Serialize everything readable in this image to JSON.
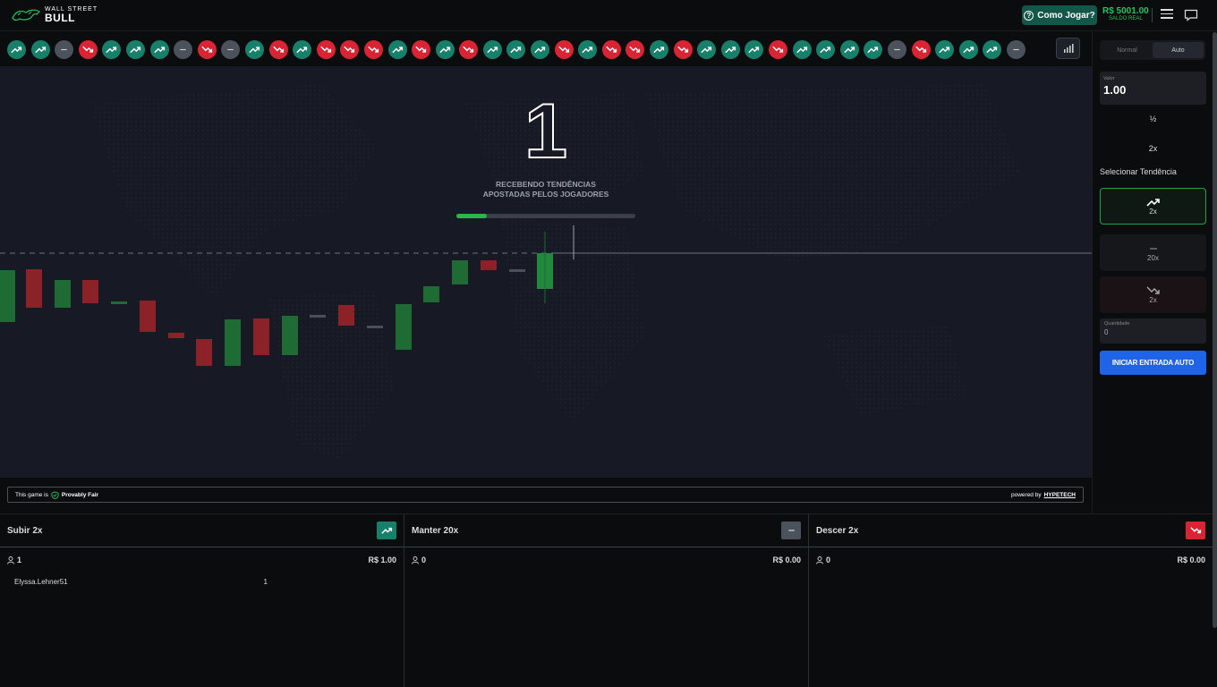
{
  "header": {
    "logo_line1": "WALL STREET",
    "logo_line2": "BULL",
    "howto_label": "Como Jogar?",
    "balance": "R$ 5001.00",
    "balance_sub": "SALDO REAL"
  },
  "history": [
    "up",
    "up",
    "flat",
    "down",
    "up",
    "up",
    "up",
    "flat",
    "down",
    "flat",
    "up",
    "down",
    "up",
    "down",
    "down",
    "down",
    "up",
    "down",
    "up",
    "down",
    "up",
    "up",
    "up",
    "down",
    "up",
    "down",
    "down",
    "up",
    "down",
    "up",
    "up",
    "up",
    "down",
    "up",
    "up",
    "up",
    "up",
    "flat",
    "down",
    "up",
    "up",
    "up",
    "flat"
  ],
  "game": {
    "countdown": "1",
    "status_line1": "RECEBENDO TENDÊNCIAS",
    "status_line2": "APOSTADAS PELOS JOGADORES",
    "progress": 0.17
  },
  "footer": {
    "fair_prefix": "This game is",
    "fair_label": "Provably Fair",
    "powered": "powered by",
    "brand": "HYPETECH"
  },
  "panel": {
    "tab_normal": "Normal",
    "tab_auto": "Auto",
    "value_label": "Valor",
    "value": "1.00",
    "half_label": "½",
    "double_label": "2x",
    "select_trend": "Selecionar Tendência",
    "trend_up_mult": "2x",
    "trend_flat_mult": "20x",
    "trend_down_mult": "2x",
    "qty_label": "Quantidade",
    "qty_value": "0",
    "start_button": "INICIAR ENTRADA AUTO"
  },
  "colors": {
    "up": "#17806a",
    "down": "#d92433",
    "flat": "#4b525c",
    "accent_blue": "#1f64e8",
    "balance_green": "#22c55e"
  },
  "bets": [
    {
      "title": "Subir 2x",
      "type": "up",
      "count": "1",
      "total": "R$ 1.00",
      "rows": [
        {
          "player": "Elyssa.Lehner51",
          "amount": "1"
        }
      ]
    },
    {
      "title": "Manter 20x",
      "type": "flat",
      "count": "0",
      "total": "R$ 0.00",
      "rows": []
    },
    {
      "title": "Descer 2x",
      "type": "down",
      "count": "0",
      "total": "R$ 0.00",
      "rows": []
    }
  ]
}
